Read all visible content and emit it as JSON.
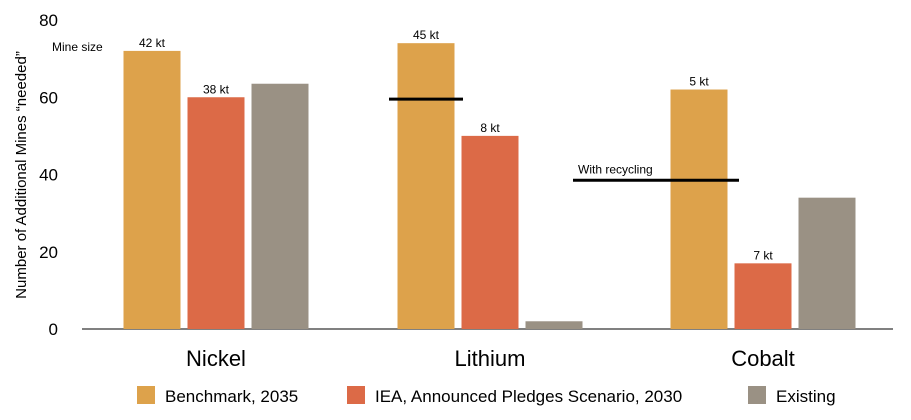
{
  "chart_data": {
    "type": "bar",
    "categories": [
      "Nickel",
      "Lithium",
      "Cobalt"
    ],
    "ylabel": "Number of Additional Mines “needed”",
    "ylim": [
      0,
      80
    ],
    "yticks": [
      0,
      20,
      40,
      60,
      80
    ],
    "grid": false,
    "legend_position": "bottom",
    "series": [
      {
        "name": "Benchmark, 2035",
        "color": "#DDA24B",
        "values": [
          72,
          74,
          62
        ],
        "labels": [
          "42 kt",
          "45 kt",
          "5 kt"
        ]
      },
      {
        "name": "IEA, Announced Pledges Scenario, 2030",
        "color": "#DC6A47",
        "values": [
          60,
          50,
          17
        ],
        "labels": [
          "38 kt",
          "8 kt",
          "7 kt"
        ]
      },
      {
        "name": "Existing",
        "color": "#9A9184",
        "values": [
          63.5,
          2,
          34
        ],
        "labels": [
          "",
          "",
          ""
        ]
      }
    ],
    "annotations": {
      "mine_size": "Mine size",
      "with_recycling": "With recycling",
      "lithium_recycling_value": 59.5,
      "cobalt_recycling_value": 38.5
    }
  }
}
